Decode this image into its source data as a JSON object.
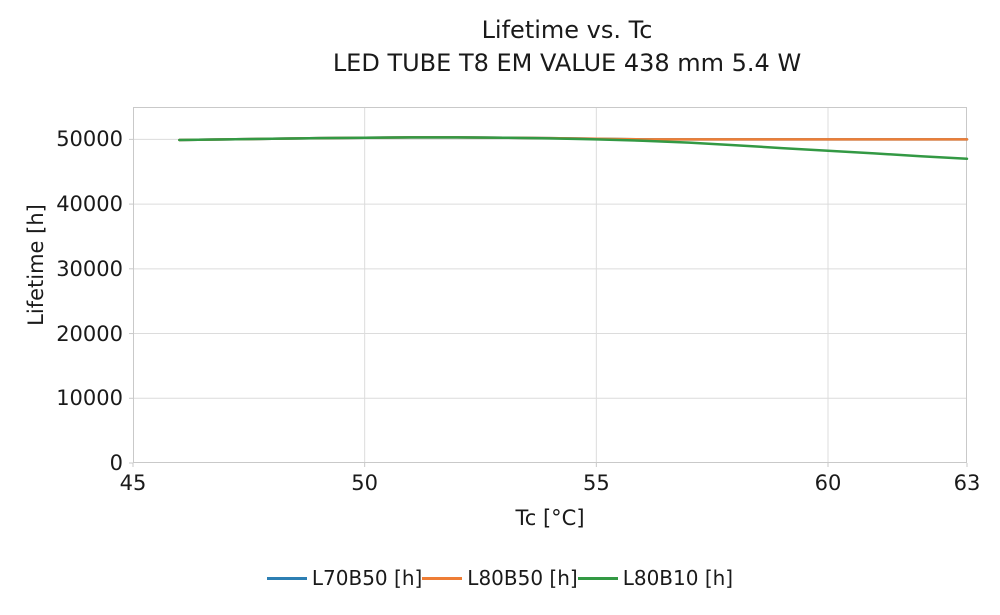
{
  "chart_data": {
    "type": "line",
    "title": "Lifetime vs. Tc",
    "subtitle": "LED TUBE T8 EM VALUE 438 mm 5.4 W",
    "xlabel": "Tc [°C]",
    "ylabel": "Lifetime [h]",
    "xlim": [
      45,
      63
    ],
    "ylim": [
      0,
      55000
    ],
    "xticks": [
      45,
      50,
      55,
      60,
      63
    ],
    "yticks": [
      0,
      10000,
      20000,
      30000,
      40000,
      50000
    ],
    "grid": true,
    "legend_position": "bottom",
    "colors": {
      "grid": "#dcdcdc",
      "axis_border": "#c9c9c9",
      "text": "#1a1a1a",
      "background": "#ffffff"
    },
    "x": [
      46,
      47,
      48,
      49,
      50,
      51,
      52,
      53,
      54,
      55,
      56,
      57,
      58,
      59,
      60,
      61,
      62,
      63
    ],
    "series": [
      {
        "name": "L70B50 [h]",
        "color": "#2d7fb3",
        "values": [
          49900,
          50000,
          50100,
          50200,
          50250,
          50300,
          50300,
          50250,
          50200,
          50100,
          50000,
          50000,
          50000,
          50000,
          50000,
          50000,
          50000,
          50000
        ]
      },
      {
        "name": "L80B50 [h]",
        "color": "#ee7d35",
        "values": [
          49900,
          50000,
          50100,
          50200,
          50250,
          50300,
          50300,
          50250,
          50200,
          50100,
          50000,
          50000,
          50000,
          50000,
          50000,
          50000,
          50000,
          50000
        ]
      },
      {
        "name": "L80B10 [h]",
        "color": "#339944",
        "values": [
          49900,
          50000,
          50100,
          50200,
          50250,
          50300,
          50300,
          50250,
          50150,
          50000,
          49800,
          49500,
          49100,
          48650,
          48250,
          47830,
          47400,
          47000
        ]
      }
    ]
  }
}
